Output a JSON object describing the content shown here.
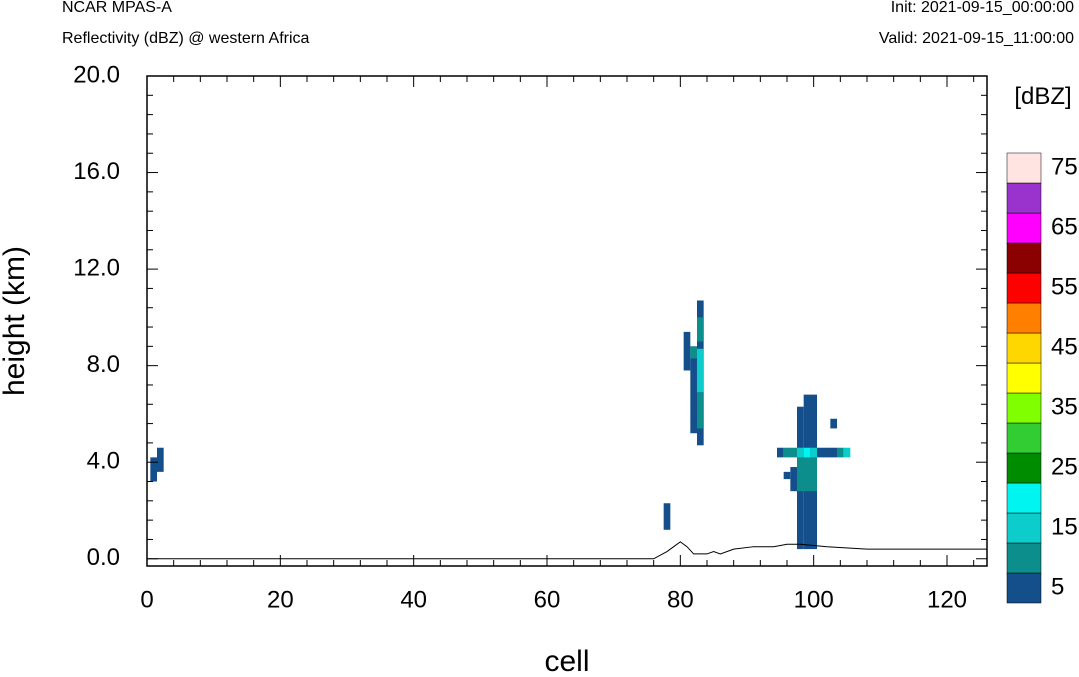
{
  "header": {
    "title": "NCAR MPAS-A",
    "subtitle": "Reflectivity (dBZ) @ western Africa",
    "init": "Init: 2021-09-15_00:00:00",
    "valid": "Valid: 2021-09-15_11:00:00"
  },
  "chart_data": {
    "type": "heatmap",
    "xlabel": "cell",
    "ylabel": "height (km)",
    "xlim": [
      0,
      126
    ],
    "ylim": [
      -0.3,
      20.0
    ],
    "x_ticks": [
      0,
      20,
      40,
      60,
      80,
      100,
      120
    ],
    "y_ticks": [
      0.0,
      4.0,
      8.0,
      12.0,
      16.0,
      20.0
    ],
    "x_tick_labels": [
      "0",
      "20",
      "40",
      "60",
      "80",
      "100",
      "120"
    ],
    "y_tick_labels": [
      "0.0",
      "4.0",
      "8.0",
      "12.0",
      "16.0",
      "20.0"
    ],
    "colorbar": {
      "title": "[dBZ]",
      "levels": [
        5,
        10,
        15,
        20,
        25,
        30,
        35,
        40,
        45,
        50,
        55,
        60,
        65,
        70,
        75
      ],
      "tick_labels": [
        "5",
        "15",
        "25",
        "35",
        "45",
        "55",
        "65",
        "75"
      ],
      "colors": [
        "#144e8b",
        "#0c8f8c",
        "#0ccccc",
        "#00f5f0",
        "#008c00",
        "#32cd32",
        "#80ff00",
        "#ffff00",
        "#ffd700",
        "#ff8000",
        "#ff0000",
        "#8b0000",
        "#ff00ff",
        "#9a32cd",
        "#ffe4e1"
      ]
    },
    "cells": [
      {
        "x0": 0.5,
        "x1": 1.5,
        "y0": 3.2,
        "y1": 4.2,
        "dbz": 5
      },
      {
        "x0": 1.5,
        "x1": 2.5,
        "y0": 3.6,
        "y1": 4.6,
        "dbz": 5
      },
      {
        "x0": 77.5,
        "x1": 78.5,
        "y0": 1.2,
        "y1": 2.3,
        "dbz": 5
      },
      {
        "x0": 80.5,
        "x1": 81.5,
        "y0": 7.8,
        "y1": 9.4,
        "dbz": 5
      },
      {
        "x0": 81.5,
        "x1": 82.5,
        "y0": 5.2,
        "y1": 8.8,
        "dbz": 5
      },
      {
        "x0": 82.5,
        "x1": 83.5,
        "y0": 4.7,
        "y1": 10.7,
        "dbz": 5
      },
      {
        "x0": 81.5,
        "x1": 82.5,
        "y0": 8.3,
        "y1": 8.8,
        "dbz": 10
      },
      {
        "x0": 82.5,
        "x1": 83.5,
        "y0": 9.0,
        "y1": 10.0,
        "dbz": 10
      },
      {
        "x0": 82.5,
        "x1": 83.5,
        "y0": 5.4,
        "y1": 6.9,
        "dbz": 10
      },
      {
        "x0": 82.5,
        "x1": 83.5,
        "y0": 6.9,
        "y1": 8.7,
        "dbz": 15
      },
      {
        "x0": 94.5,
        "x1": 95.5,
        "y0": 4.2,
        "y1": 4.6,
        "dbz": 5
      },
      {
        "x0": 95.5,
        "x1": 96.5,
        "y0": 3.3,
        "y1": 3.6,
        "dbz": 5
      },
      {
        "x0": 96.5,
        "x1": 97.5,
        "y0": 2.8,
        "y1": 3.8,
        "dbz": 5
      },
      {
        "x0": 97.5,
        "x1": 98.5,
        "y0": 0.4,
        "y1": 6.3,
        "dbz": 5
      },
      {
        "x0": 98.5,
        "x1": 100.5,
        "y0": 0.4,
        "y1": 6.8,
        "dbz": 5
      },
      {
        "x0": 100.5,
        "x1": 103.5,
        "y0": 4.2,
        "y1": 4.6,
        "dbz": 5
      },
      {
        "x0": 102.5,
        "x1": 103.5,
        "y0": 5.4,
        "y1": 5.8,
        "dbz": 5
      },
      {
        "x0": 95.5,
        "x1": 97.5,
        "y0": 4.2,
        "y1": 4.6,
        "dbz": 10
      },
      {
        "x0": 97.5,
        "x1": 100.5,
        "y0": 2.8,
        "y1": 4.2,
        "dbz": 10
      },
      {
        "x0": 97.5,
        "x1": 98.5,
        "y0": 4.2,
        "y1": 4.6,
        "dbz": 15
      },
      {
        "x0": 98.5,
        "x1": 99.5,
        "y0": 4.2,
        "y1": 4.6,
        "dbz": 20
      },
      {
        "x0": 99.5,
        "x1": 100.5,
        "y0": 4.2,
        "y1": 4.6,
        "dbz": 15
      },
      {
        "x0": 103.5,
        "x1": 104.5,
        "y0": 4.2,
        "y1": 4.6,
        "dbz": 10
      },
      {
        "x0": 104.5,
        "x1": 105.5,
        "y0": 4.2,
        "y1": 4.6,
        "dbz": 15
      }
    ],
    "terrain": [
      [
        0,
        0.0
      ],
      [
        76,
        0.0
      ],
      [
        78,
        0.3
      ],
      [
        79,
        0.5
      ],
      [
        80,
        0.7
      ],
      [
        81,
        0.5
      ],
      [
        82,
        0.2
      ],
      [
        84,
        0.2
      ],
      [
        85,
        0.3
      ],
      [
        86,
        0.2
      ],
      [
        88,
        0.4
      ],
      [
        91,
        0.5
      ],
      [
        94,
        0.5
      ],
      [
        96,
        0.6
      ],
      [
        98,
        0.6
      ],
      [
        102,
        0.5
      ],
      [
        108,
        0.4
      ],
      [
        114,
        0.4
      ],
      [
        120,
        0.4
      ],
      [
        126,
        0.4
      ]
    ]
  }
}
